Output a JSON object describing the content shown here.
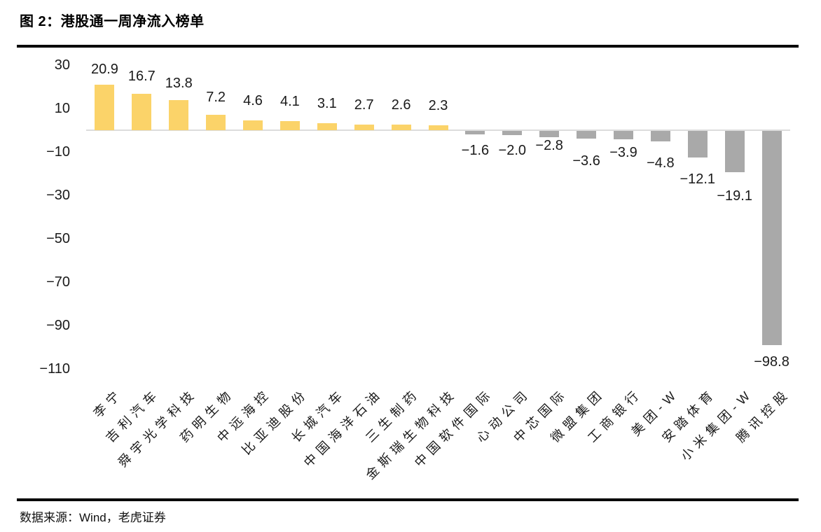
{
  "header": {
    "title": "图 2：港股通一周净流入榜单"
  },
  "footer": {
    "source": "数据来源：Wind，老虎证券"
  },
  "chart_data": {
    "type": "bar",
    "title": "图 2：港股通一周净流入榜单",
    "xlabel": "",
    "ylabel": "",
    "categories": [
      "李宁",
      "吉利汽车",
      "舜宇光学科技",
      "药明生物",
      "中远海控",
      "比亚迪股份",
      "长城汽车",
      "中国海洋石油",
      "三生制药",
      "金斯瑞生物科技",
      "中国软件国际",
      "心动公司",
      "中芯国际",
      "微盟集团",
      "工商银行",
      "美团-W",
      "安踏体育",
      "小米集团-W",
      "腾讯控股"
    ],
    "values": [
      20.9,
      16.7,
      13.8,
      7.2,
      4.6,
      4.1,
      3.1,
      2.7,
      2.6,
      2.3,
      -1.6,
      -2.0,
      -2.8,
      -3.6,
      -3.9,
      -4.8,
      -12.1,
      -19.1,
      -98.8
    ],
    "labels": [
      "20.9",
      "16.7",
      "13.8",
      "7.2",
      "4.6",
      "4.1",
      "3.1",
      "2.7",
      "2.6",
      "2.3",
      "−1.6",
      "−2.0",
      "−2.8",
      "−3.6",
      "−3.9",
      "−4.8",
      "−12.1",
      "−19.1",
      "−98.8"
    ],
    "yticks": [
      30,
      10,
      -10,
      -30,
      -50,
      -70,
      -90,
      -110
    ],
    "ytick_labels": [
      "30",
      "10",
      "−10",
      "−30",
      "−50",
      "−70",
      "−90",
      "−110"
    ],
    "ylim": [
      -110,
      30
    ],
    "grid": false,
    "legend": "none",
    "positive_color": "#FBD369",
    "negative_color": "#A9A9A9",
    "axis_line_color": "#DCDCDC",
    "label_gaps": [
      11,
      14,
      13,
      14,
      17,
      17,
      17,
      17,
      17,
      17,
      13,
      12,
      2,
      22,
      9,
      21,
      21,
      24,
      14
    ],
    "source_note": "数据来源：Wind，老虎证券"
  }
}
